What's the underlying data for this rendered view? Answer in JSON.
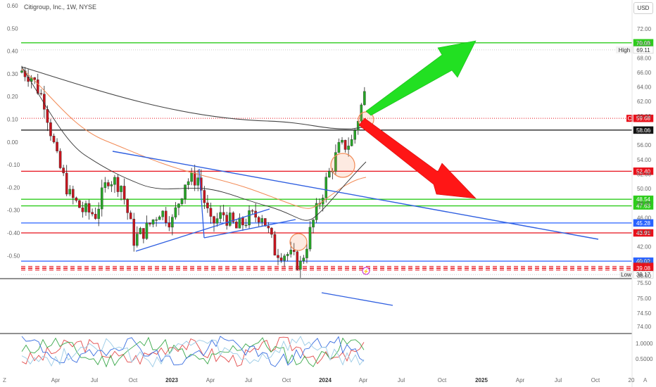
{
  "header": {
    "title": "Citigroup, Inc., 1W, NYSE",
    "currency": "USD"
  },
  "corner": {
    "left": "Z",
    "right": "A"
  },
  "left_axis_ticks": [
    "0.60",
    "0.50",
    "0.40",
    "0.30",
    "0.20",
    "0.10",
    "0.00",
    "-0.10",
    "-0.20",
    "-0.30",
    "-0.40",
    "-0.50"
  ],
  "right_axis_ticks": [
    "72.00",
    "70.00",
    "68.00",
    "66.00",
    "64.00",
    "62.00",
    "60.00",
    "58.00",
    "56.00",
    "54.00",
    "52.00",
    "50.00",
    "48.00",
    "46.00",
    "44.00",
    "42.00",
    "40.00",
    "38.00"
  ],
  "time_axis": [
    "Apr",
    "Jul",
    "Oct",
    "2023",
    "Apr",
    "Jul",
    "Oct",
    "2024",
    "Apr",
    "Jul",
    "Oct",
    "2025",
    "Apr",
    "Jul",
    "Oct",
    "20"
  ],
  "price_levels": [
    {
      "label": "70.08",
      "color": "#2ecc1c",
      "line": "#2ecc1c",
      "style": "solid"
    },
    {
      "label": "69.11",
      "tag": "High",
      "color": "#ffffff",
      "line": "#cccccc",
      "style": "dotted",
      "text": "#333333"
    },
    {
      "label": "59.68",
      "tag": "C",
      "color": "#e8101a",
      "line": "#e8101a",
      "style": "dotted"
    },
    {
      "label": "58.06",
      "color": "#111111",
      "line": "#111111",
      "style": "solid"
    },
    {
      "label": "52.40",
      "color": "#e8101a",
      "line": "#e8101a",
      "style": "solid"
    },
    {
      "label": "48.54",
      "color": "#2ecc1c",
      "line": "#2ecc1c",
      "style": "solid"
    },
    {
      "label": "47.63",
      "color": "#2ecc1c",
      "line": "#2ecc1c",
      "style": "solid"
    },
    {
      "label": "45.28",
      "color": "#2962ff",
      "line": "#2962ff",
      "style": "solid"
    },
    {
      "label": "43.91",
      "color": "#e8101a",
      "line": "#e8101a",
      "style": "solid"
    },
    {
      "label": "40.02",
      "color": "#2962ff",
      "line": "#2962ff",
      "style": "solid"
    },
    {
      "label": "39.30",
      "color": "#e8101a",
      "line": "#e8101a",
      "style": "dashed"
    },
    {
      "label": "39.08",
      "color": "#e8101a",
      "line": "#e8101a",
      "style": "dashed"
    },
    {
      "label": "38.17",
      "tag": "Low",
      "color": "#ffffff",
      "line": "#cccccc",
      "style": "dotted",
      "text": "#333333"
    }
  ],
  "sub_axis_ticks": [
    "75.50",
    "75.00",
    "74.50",
    "74.00"
  ],
  "osc_axis_ticks": [
    "1.0000",
    "0.5000"
  ],
  "chart_data": {
    "type": "candlestick",
    "title": "Citigroup, Inc., 1W, NYSE",
    "currency": "USD",
    "y_range": [
      37,
      73
    ],
    "x_range": [
      "2022-01",
      "2025-12"
    ],
    "approx_close_path": [
      {
        "period": "2022-01",
        "close": 65.5
      },
      {
        "period": "2022-02",
        "close": 62.0
      },
      {
        "period": "2022-03",
        "close": 54.0
      },
      {
        "period": "2022-04",
        "close": 49.0
      },
      {
        "period": "2022-05",
        "close": 47.0
      },
      {
        "period": "2022-06",
        "close": 46.5
      },
      {
        "period": "2022-07",
        "close": 51.5
      },
      {
        "period": "2022-08",
        "close": 50.5
      },
      {
        "period": "2022-09",
        "close": 43.0
      },
      {
        "period": "2022-10",
        "close": 44.5
      },
      {
        "period": "2022-11",
        "close": 47.0
      },
      {
        "period": "2022-12",
        "close": 45.5
      },
      {
        "period": "2023-01",
        "close": 51.0
      },
      {
        "period": "2023-02",
        "close": 51.5
      },
      {
        "period": "2023-03",
        "close": 45.0
      },
      {
        "period": "2023-04",
        "close": 46.5
      },
      {
        "period": "2023-05",
        "close": 44.5
      },
      {
        "period": "2023-06",
        "close": 46.0
      },
      {
        "period": "2023-07",
        "close": 46.5
      },
      {
        "period": "2023-08",
        "close": 41.5
      },
      {
        "period": "2023-09",
        "close": 41.0
      },
      {
        "period": "2023-10",
        "close": 39.5
      },
      {
        "period": "2023-11",
        "close": 45.5
      },
      {
        "period": "2023-12",
        "close": 51.0
      },
      {
        "period": "2024-01",
        "close": 55.5
      },
      {
        "period": "2024-02",
        "close": 56.5
      },
      {
        "period": "2024-03",
        "close": 63.0
      },
      {
        "period": "2024-04",
        "close": 59.68
      }
    ],
    "annotations": [
      "High 69.11",
      "Low 38.17",
      "C 59.68"
    ],
    "trendlines": [
      {
        "name": "descending resistance",
        "from": {
          "period": "2022-07",
          "price": 53.8
        },
        "to": {
          "period": "2025-07",
          "price": 41.8
        }
      },
      {
        "name": "rising support",
        "from": {
          "period": "2022-10",
          "price": 39.8
        },
        "to": {
          "period": "2023-08",
          "price": 45.7
        }
      }
    ],
    "arrows": [
      {
        "direction": "up",
        "color": "#20e020",
        "target_price": 70.08
      },
      {
        "direction": "down",
        "color": "#ff1010",
        "target_price": 47.63
      }
    ]
  }
}
